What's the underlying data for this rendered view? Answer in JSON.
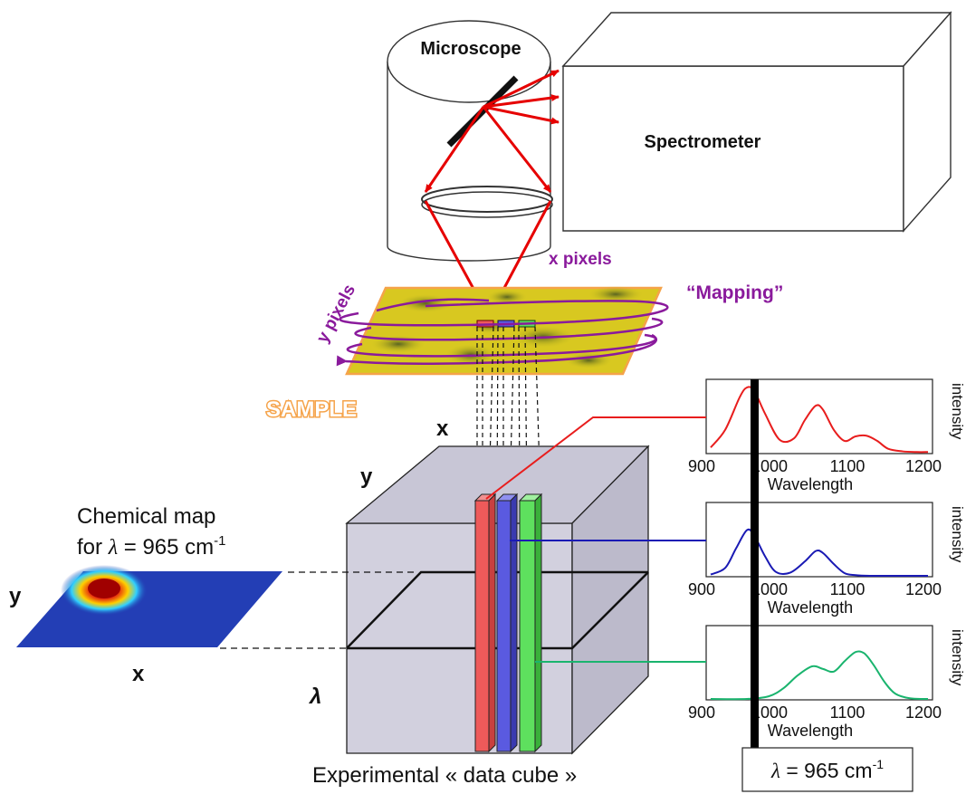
{
  "microscope": {
    "label": "Microscope"
  },
  "spectrometer": {
    "label": "Spectrometer"
  },
  "scan": {
    "x_pixels": "x pixels",
    "y_pixels": "y pixels",
    "mapping": "“Mapping”",
    "sample": "SAMPLE"
  },
  "cube": {
    "x_axis": "x",
    "y_axis": "y",
    "lambda_axis": "λ",
    "caption": "Experimental « data cube »"
  },
  "chem_map": {
    "title_line1": "Chemical map",
    "title_line2_prefix": "for ",
    "title_line2_lambda": "λ",
    "title_line2_value": " = 965 cm",
    "title_line2_exp": "-1",
    "y_axis": "y",
    "x_axis": "x"
  },
  "spectra": {
    "x_ticks": [
      "900",
      "1000",
      "1100",
      "1200"
    ],
    "xlabel": "Wavelength",
    "ylabel": "intensity",
    "colors": [
      "#e81d1d",
      "#1a1ab4",
      "#1ab46e"
    ]
  },
  "lambda_box": {
    "lambda": "λ",
    "value": " = 965 cm",
    "exp": "-1"
  },
  "colors": {
    "beam": "#e60000",
    "scan_arrow": "#8a1a9c",
    "mapping_text": "#8a1a9c",
    "sample_text": "#f5a34a",
    "cube_face": "#d2d0de",
    "red_column": "#ee5a5a",
    "blue_column": "#5a5ae0",
    "green_column": "#5ee05e"
  },
  "chart_data": [
    {
      "type": "line",
      "xlabel": "Wavelength",
      "ylabel": "intensity",
      "xlim": [
        900,
        1200
      ],
      "x_ticks": [
        900,
        1000,
        1100,
        1200
      ],
      "series": [
        {
          "x": [
            900,
            920,
            940,
            950,
            960,
            975,
            995,
            1015,
            1030,
            1045,
            1055,
            1070,
            1085,
            1100,
            1115,
            1130,
            1145,
            1165,
            1185,
            1200
          ],
          "y": [
            0.08,
            0.35,
            0.85,
            1.0,
            0.95,
            0.6,
            0.2,
            0.22,
            0.5,
            0.72,
            0.66,
            0.35,
            0.18,
            0.25,
            0.26,
            0.18,
            0.06,
            0.02,
            0.01,
            0.01
          ]
        }
      ]
    },
    {
      "type": "line",
      "xlabel": "Wavelength",
      "ylabel": "intensity",
      "xlim": [
        900,
        1200
      ],
      "x_ticks": [
        900,
        1000,
        1100,
        1200
      ],
      "series": [
        {
          "x": [
            900,
            920,
            935,
            950,
            960,
            975,
            990,
            1010,
            1030,
            1045,
            1055,
            1070,
            1085,
            1100,
            1120,
            1150,
            1200
          ],
          "y": [
            0.02,
            0.12,
            0.42,
            0.7,
            0.62,
            0.3,
            0.06,
            0.05,
            0.22,
            0.38,
            0.35,
            0.18,
            0.04,
            0.01,
            0.0,
            0.0,
            0.0
          ]
        }
      ]
    },
    {
      "type": "line",
      "xlabel": "Wavelength",
      "ylabel": "intensity",
      "xlim": [
        900,
        1200
      ],
      "x_ticks": [
        900,
        1000,
        1100,
        1200
      ],
      "series": [
        {
          "x": [
            900,
            950,
            980,
            1000,
            1020,
            1040,
            1055,
            1070,
            1085,
            1100,
            1112,
            1125,
            1140,
            1155,
            1175,
            1200
          ],
          "y": [
            0.0,
            0.0,
            0.04,
            0.16,
            0.36,
            0.5,
            0.46,
            0.42,
            0.58,
            0.72,
            0.7,
            0.52,
            0.26,
            0.08,
            0.01,
            0.0
          ]
        }
      ]
    }
  ]
}
